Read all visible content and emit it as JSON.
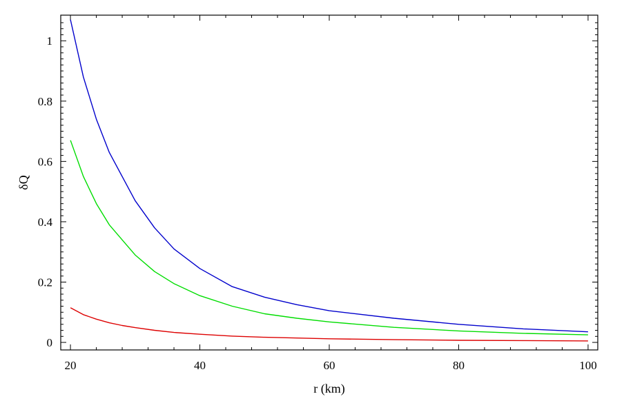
{
  "chart_data": {
    "type": "line",
    "title": "",
    "xlabel": "r (km)",
    "ylabel": "δQ",
    "xlim": [
      18.5,
      101.5
    ],
    "ylim": [
      -0.025,
      1.085
    ],
    "xticks": [
      20,
      40,
      60,
      80,
      100
    ],
    "yticks": [
      0,
      0.2,
      0.4,
      0.6,
      0.8,
      1
    ],
    "x_tick_labels": [
      "20",
      "40",
      "60",
      "80",
      "100"
    ],
    "y_tick_labels": [
      "0",
      "0.2",
      "0.4",
      "0.6",
      "0.8",
      "1"
    ],
    "grid": false,
    "legend": "none",
    "series": [
      {
        "color": "#0000cc",
        "x": [
          20,
          22,
          24,
          26,
          28,
          30,
          33,
          36,
          40,
          45,
          50,
          55,
          60,
          70,
          80,
          90,
          100
        ],
        "y": [
          1.07,
          0.88,
          0.74,
          0.63,
          0.55,
          0.47,
          0.38,
          0.31,
          0.245,
          0.185,
          0.15,
          0.125,
          0.105,
          0.08,
          0.06,
          0.045,
          0.035
        ]
      },
      {
        "color": "#00dd00",
        "x": [
          20,
          22,
          24,
          26,
          28,
          30,
          33,
          36,
          40,
          45,
          50,
          55,
          60,
          70,
          80,
          90,
          100
        ],
        "y": [
          0.67,
          0.55,
          0.46,
          0.39,
          0.34,
          0.29,
          0.235,
          0.195,
          0.155,
          0.12,
          0.095,
          0.08,
          0.068,
          0.05,
          0.038,
          0.03,
          0.025
        ]
      },
      {
        "color": "#dd0000",
        "x": [
          20,
          22,
          24,
          26,
          28,
          30,
          33,
          36,
          40,
          45,
          50,
          60,
          70,
          80,
          90,
          100
        ],
        "y": [
          0.115,
          0.092,
          0.077,
          0.065,
          0.056,
          0.049,
          0.04,
          0.033,
          0.027,
          0.021,
          0.017,
          0.012,
          0.009,
          0.007,
          0.006,
          0.005
        ]
      }
    ]
  }
}
